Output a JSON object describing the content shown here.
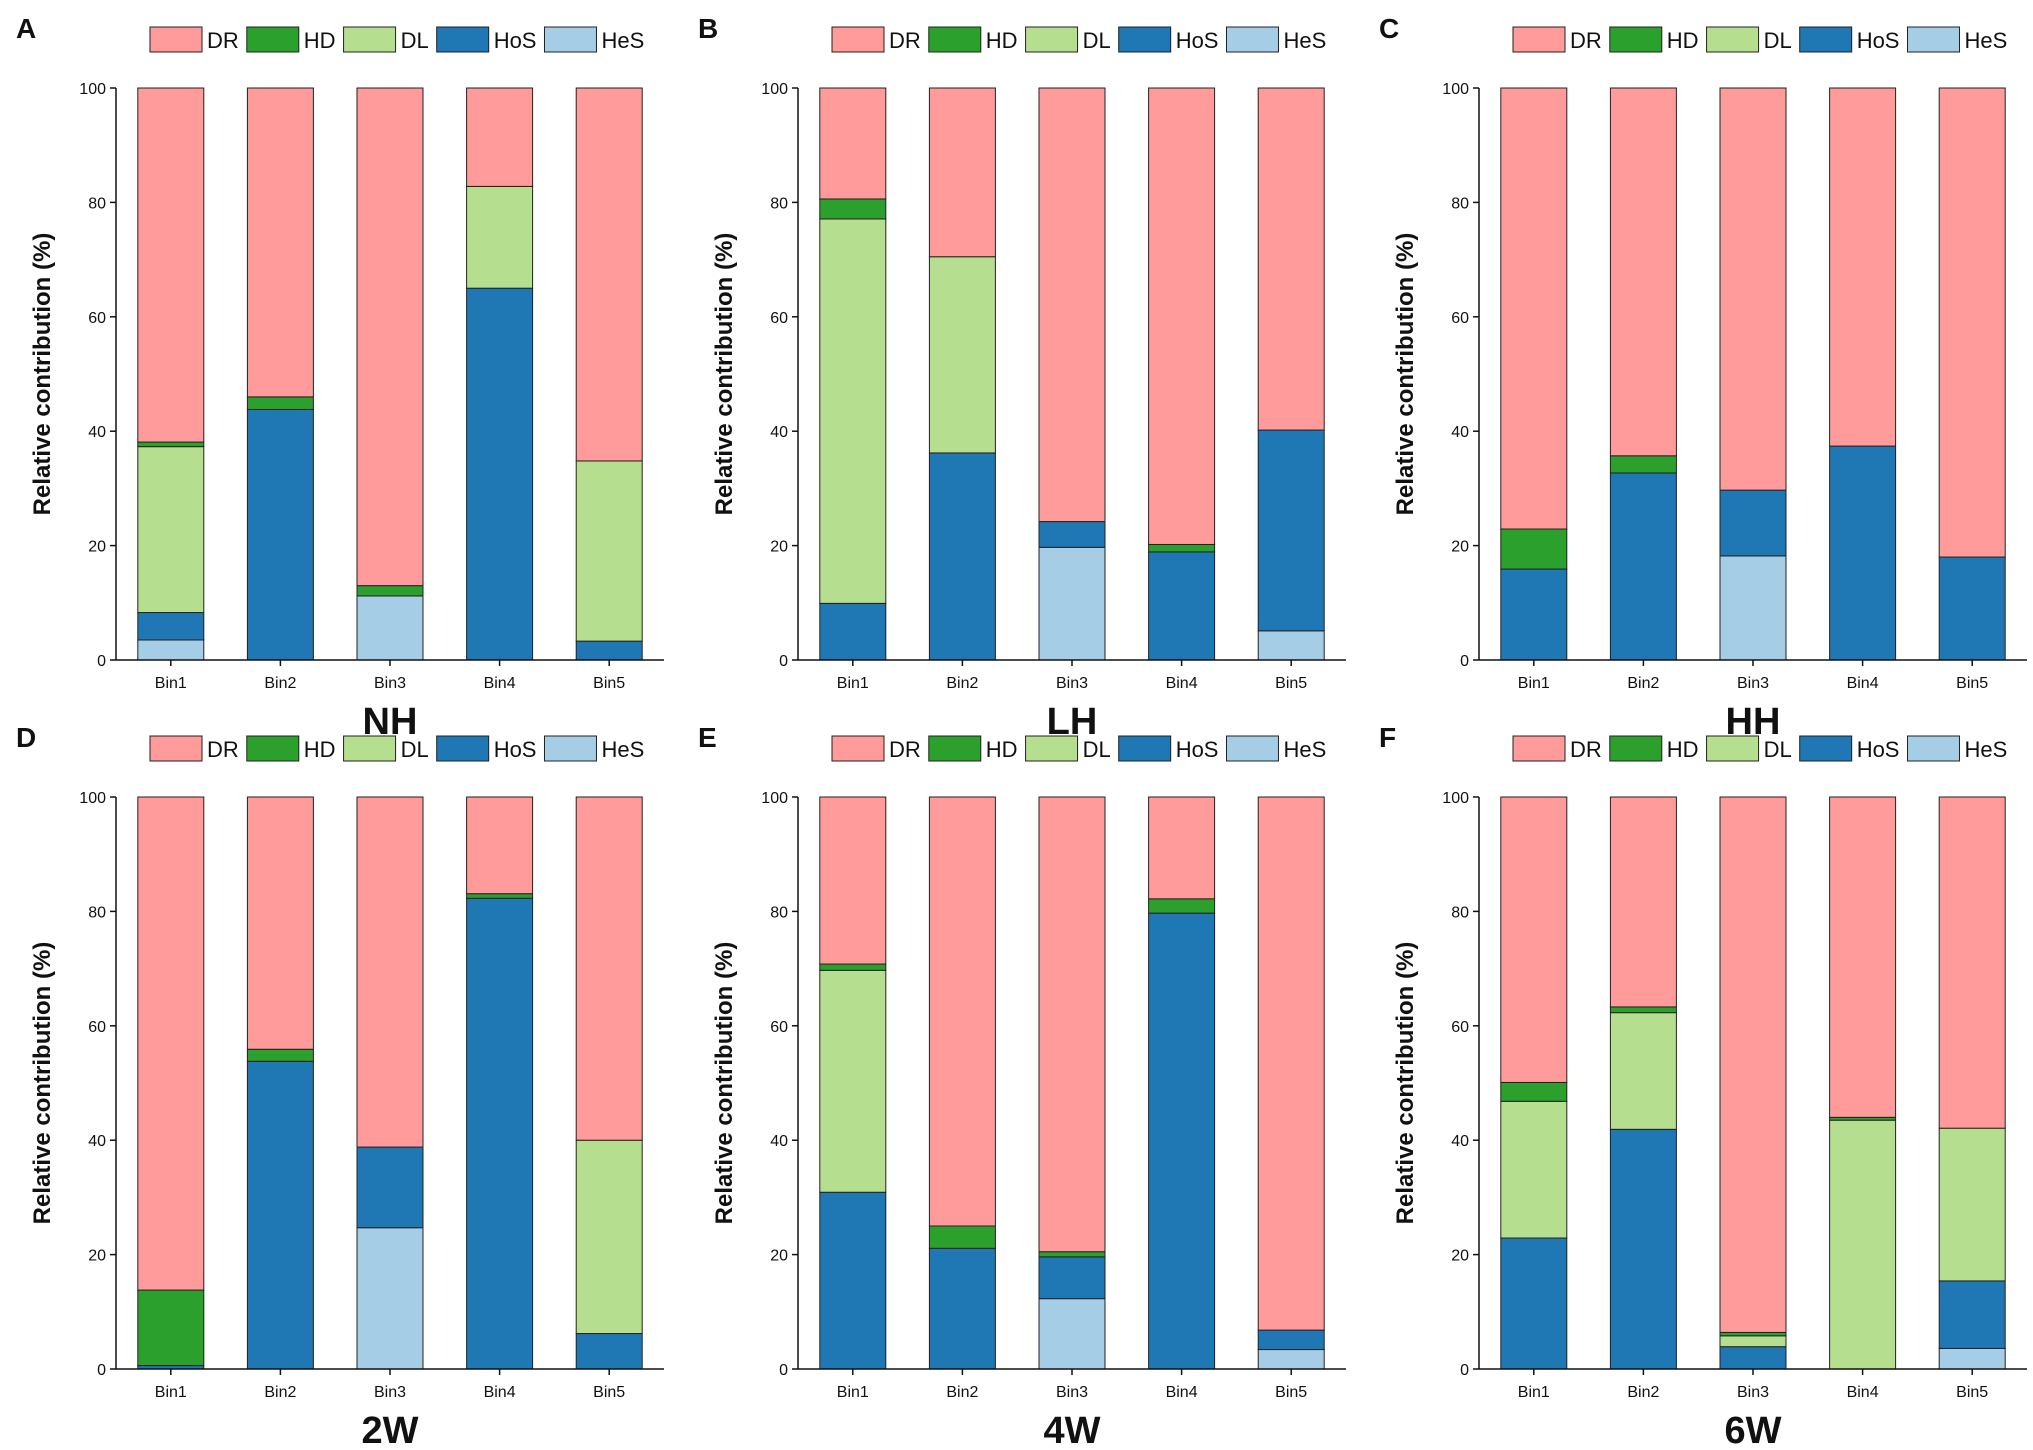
{
  "legend": [
    "DR",
    "HD",
    "DL",
    "HoS",
    "HeS"
  ],
  "colors": {
    "DR": "#FF9B9B",
    "HD": "#2CA02C",
    "DL": "#B5DE8E",
    "HoS": "#1F77B4",
    "HeS": "#A6CDE6"
  },
  "chart_data": [
    {
      "type": "bar",
      "stacked": true,
      "panel": "A",
      "title": "NH",
      "xlabel": "",
      "ylabel": "Relative contribution (%)",
      "ylim": [
        0,
        100
      ],
      "yticks": [
        "0",
        "20",
        "40",
        "60",
        "80",
        "100"
      ],
      "categories": [
        "Bin1",
        "Bin2",
        "Bin3",
        "Bin4",
        "Bin5"
      ],
      "series": [
        {
          "name": "HeS",
          "values": [
            3.5,
            0,
            11.2,
            0,
            0
          ]
        },
        {
          "name": "HoS",
          "values": [
            4.8,
            43.8,
            0,
            65.0,
            3.3
          ]
        },
        {
          "name": "DL",
          "values": [
            29.0,
            0,
            0,
            17.8,
            31.5
          ]
        },
        {
          "name": "HD",
          "values": [
            0.8,
            2.2,
            1.8,
            0,
            0
          ]
        },
        {
          "name": "DR",
          "values": [
            61.9,
            54.0,
            87.0,
            17.2,
            65.2
          ]
        }
      ]
    },
    {
      "type": "bar",
      "stacked": true,
      "panel": "B",
      "title": "LH",
      "xlabel": "",
      "ylabel": "Relative contribution (%)",
      "ylim": [
        0,
        100
      ],
      "yticks": [
        "0",
        "20",
        "40",
        "60",
        "80",
        "100"
      ],
      "categories": [
        "Bin1",
        "Bin2",
        "Bin3",
        "Bin4",
        "Bin5"
      ],
      "series": [
        {
          "name": "HeS",
          "values": [
            0,
            0,
            19.7,
            0,
            5.1
          ]
        },
        {
          "name": "HoS",
          "values": [
            9.9,
            36.2,
            4.5,
            18.9,
            35.1
          ]
        },
        {
          "name": "DL",
          "values": [
            67.2,
            34.3,
            0,
            0,
            0
          ]
        },
        {
          "name": "HD",
          "values": [
            3.5,
            0,
            0,
            1.3,
            0
          ]
        },
        {
          "name": "DR",
          "values": [
            19.4,
            29.5,
            75.8,
            79.8,
            59.8
          ]
        }
      ]
    },
    {
      "type": "bar",
      "stacked": true,
      "panel": "C",
      "title": "HH",
      "xlabel": "",
      "ylabel": "Relative contribution (%)",
      "ylim": [
        0,
        100
      ],
      "yticks": [
        "0",
        "20",
        "40",
        "60",
        "80",
        "100"
      ],
      "categories": [
        "Bin1",
        "Bin2",
        "Bin3",
        "Bin4",
        "Bin5"
      ],
      "series": [
        {
          "name": "HeS",
          "values": [
            0,
            0,
            18.2,
            0,
            0
          ]
        },
        {
          "name": "HoS",
          "values": [
            15.9,
            32.7,
            11.5,
            37.4,
            18.0
          ]
        },
        {
          "name": "DL",
          "values": [
            0,
            0,
            0,
            0,
            0
          ]
        },
        {
          "name": "HD",
          "values": [
            7.0,
            3.0,
            0,
            0,
            0
          ]
        },
        {
          "name": "DR",
          "values": [
            77.1,
            64.3,
            70.3,
            62.6,
            82.0
          ]
        }
      ]
    },
    {
      "type": "bar",
      "stacked": true,
      "panel": "D",
      "title": "2W",
      "xlabel": "",
      "ylabel": "Relative contribution (%)",
      "ylim": [
        0,
        100
      ],
      "yticks": [
        "0",
        "20",
        "40",
        "60",
        "80",
        "100"
      ],
      "categories": [
        "Bin1",
        "Bin2",
        "Bin3",
        "Bin4",
        "Bin5"
      ],
      "series": [
        {
          "name": "HeS",
          "values": [
            0,
            0,
            24.7,
            0,
            0
          ]
        },
        {
          "name": "HoS",
          "values": [
            0.6,
            53.8,
            14.1,
            82.3,
            6.2
          ]
        },
        {
          "name": "DL",
          "values": [
            0,
            0,
            0,
            0,
            33.8
          ]
        },
        {
          "name": "HD",
          "values": [
            13.2,
            2.1,
            0,
            0.8,
            0
          ]
        },
        {
          "name": "DR",
          "values": [
            86.2,
            44.1,
            61.2,
            16.9,
            60.0
          ]
        }
      ]
    },
    {
      "type": "bar",
      "stacked": true,
      "panel": "E",
      "title": "4W",
      "xlabel": "",
      "ylabel": "Relative contribution (%)",
      "ylim": [
        0,
        100
      ],
      "yticks": [
        "0",
        "20",
        "40",
        "60",
        "80",
        "100"
      ],
      "categories": [
        "Bin1",
        "Bin2",
        "Bin3",
        "Bin4",
        "Bin5"
      ],
      "series": [
        {
          "name": "HeS",
          "values": [
            0,
            0,
            12.3,
            0,
            3.4
          ]
        },
        {
          "name": "HoS",
          "values": [
            30.9,
            21.1,
            7.3,
            79.7,
            3.4
          ]
        },
        {
          "name": "DL",
          "values": [
            38.8,
            0,
            0,
            0,
            0
          ]
        },
        {
          "name": "HD",
          "values": [
            1.1,
            3.9,
            0.9,
            2.5,
            0
          ]
        },
        {
          "name": "DR",
          "values": [
            29.2,
            75.0,
            79.5,
            17.8,
            93.2
          ]
        }
      ]
    },
    {
      "type": "bar",
      "stacked": true,
      "panel": "F",
      "title": "6W",
      "xlabel": "",
      "ylabel": "Relative contribution (%)",
      "ylim": [
        0,
        100
      ],
      "yticks": [
        "0",
        "20",
        "40",
        "60",
        "80",
        "100"
      ],
      "categories": [
        "Bin1",
        "Bin2",
        "Bin3",
        "Bin4",
        "Bin5"
      ],
      "series": [
        {
          "name": "HeS",
          "values": [
            0,
            0,
            0,
            0,
            3.6
          ]
        },
        {
          "name": "HoS",
          "values": [
            22.9,
            41.9,
            3.9,
            0,
            11.8
          ]
        },
        {
          "name": "DL",
          "values": [
            23.9,
            20.4,
            1.9,
            43.5,
            26.7
          ]
        },
        {
          "name": "HD",
          "values": [
            3.3,
            1.0,
            0.6,
            0.5,
            0
          ]
        },
        {
          "name": "DR",
          "values": [
            49.9,
            36.7,
            93.6,
            56.0,
            57.9
          ]
        }
      ]
    }
  ]
}
